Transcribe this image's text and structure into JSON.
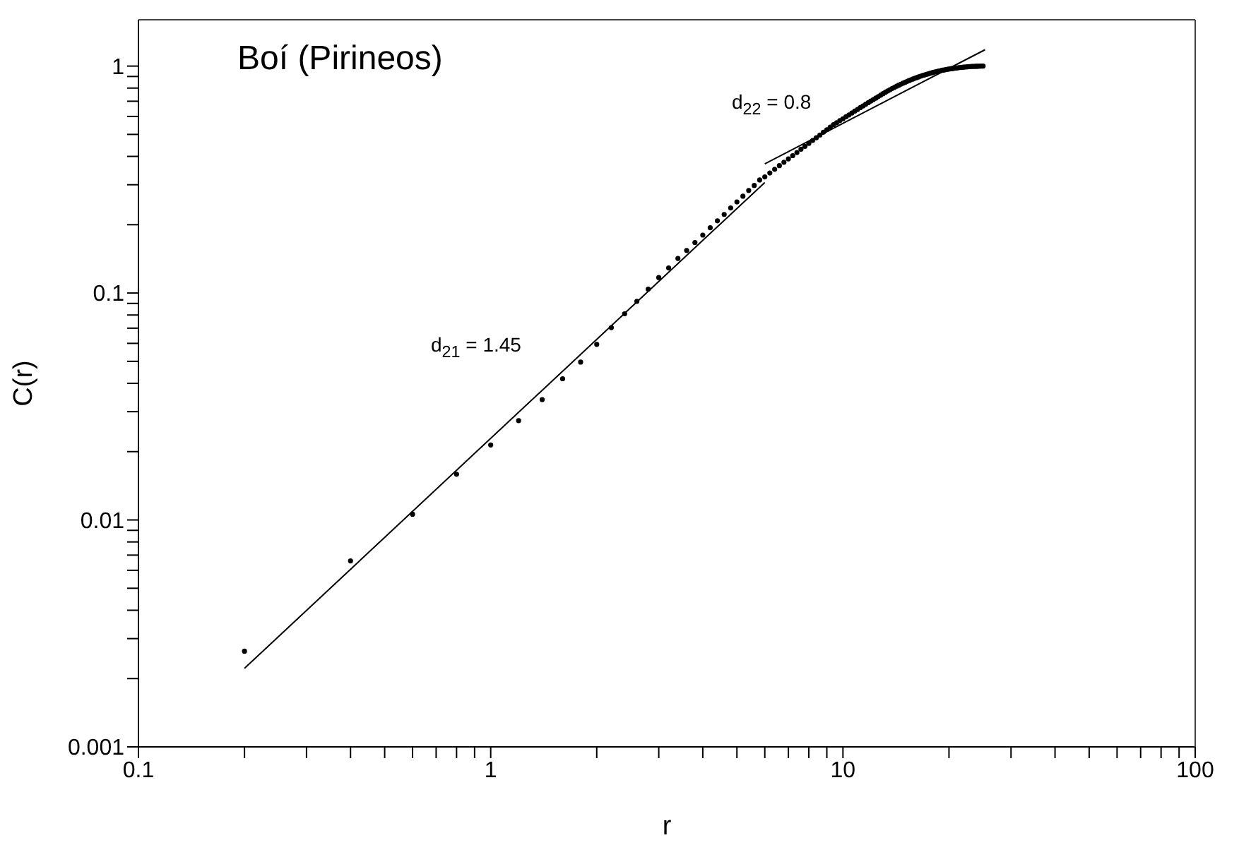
{
  "chart_data": {
    "type": "scatter",
    "title": "Boí (Pirineos)",
    "xlabel": "r",
    "ylabel": "C(r)",
    "log": "xy",
    "grid": false,
    "legend": false,
    "xlim": [
      0.1,
      100
    ],
    "ylim": [
      0.001,
      1.6
    ],
    "xticks": [
      0.1,
      {
        "value": 0.2,
        "label": null
      },
      {
        "value": 0.3,
        "label": null
      },
      {
        "value": 0.4,
        "label": null
      },
      {
        "value": 0.5,
        "label": null
      },
      {
        "value": 0.6,
        "label": null
      },
      {
        "value": 0.7,
        "label": null
      },
      {
        "value": 0.8,
        "label": null
      },
      {
        "value": 0.9,
        "label": null
      },
      1,
      {
        "value": 2,
        "label": null
      },
      {
        "value": 3,
        "label": null
      },
      {
        "value": 4,
        "label": null
      },
      {
        "value": 5,
        "label": null
      },
      {
        "value": 6,
        "label": null
      },
      {
        "value": 7,
        "label": null
      },
      {
        "value": 8,
        "label": null
      },
      {
        "value": 9,
        "label": null
      },
      10,
      {
        "value": 20,
        "label": null
      },
      {
        "value": 30,
        "label": null
      },
      {
        "value": 40,
        "label": null
      },
      {
        "value": 50,
        "label": null
      },
      {
        "value": 60,
        "label": null
      },
      {
        "value": 70,
        "label": null
      },
      {
        "value": 80,
        "label": null
      },
      {
        "value": 90,
        "label": null
      },
      100
    ],
    "yticks": [
      0.001,
      {
        "value": 0.002,
        "label": null
      },
      {
        "value": 0.003,
        "label": null
      },
      {
        "value": 0.004,
        "label": null
      },
      {
        "value": 0.005,
        "label": null
      },
      {
        "value": 0.006,
        "label": null
      },
      {
        "value": 0.007,
        "label": null
      },
      {
        "value": 0.008,
        "label": null
      },
      {
        "value": 0.009,
        "label": null
      },
      0.01,
      {
        "value": 0.02,
        "label": null
      },
      {
        "value": 0.03,
        "label": null
      },
      {
        "value": 0.04,
        "label": null
      },
      {
        "value": 0.05,
        "label": null
      },
      {
        "value": 0.06,
        "label": null
      },
      {
        "value": 0.07,
        "label": null
      },
      {
        "value": 0.08,
        "label": null
      },
      {
        "value": 0.09,
        "label": null
      },
      0.1,
      {
        "value": 0.2,
        "label": null
      },
      {
        "value": 0.3,
        "label": null
      },
      {
        "value": 0.4,
        "label": null
      },
      {
        "value": 0.5,
        "label": null
      },
      {
        "value": 0.6,
        "label": null
      },
      {
        "value": 0.7,
        "label": null
      },
      {
        "value": 0.8,
        "label": null
      },
      {
        "value": 0.9,
        "label": null
      },
      1
    ],
    "annotations": [
      "d$_{21}$ = 1.45",
      "d$_{22}$ = 0.8"
    ],
    "series": [
      {
        "marker": "circle",
        "color": "#000000",
        "x": [
          0.2,
          0.4,
          0.6,
          0.8,
          1.0,
          1.2,
          1.4,
          1.6,
          1.8,
          2.0,
          2.2,
          2.4,
          2.6,
          2.8,
          3.0,
          3.2,
          3.4,
          3.6,
          3.8,
          4.0,
          4.2,
          4.4,
          4.6,
          4.8,
          5.0,
          5.2,
          5.4,
          5.6,
          5.8,
          6.0,
          6.2,
          6.4,
          6.6,
          6.8,
          7.0,
          7.2,
          7.4,
          7.6,
          7.8,
          8.0,
          8.2,
          8.4,
          8.6,
          8.8,
          9.0,
          9.2,
          9.4,
          9.6,
          9.8,
          10.0,
          10.2,
          10.4,
          10.6,
          10.8,
          11.0,
          11.2,
          11.4,
          11.6,
          11.8,
          12.0,
          12.2,
          12.4,
          12.6,
          12.8,
          13.0,
          13.2,
          13.4,
          13.6,
          13.8,
          14.0,
          14.2,
          14.4,
          14.6,
          14.8,
          15.0,
          15.2,
          15.4,
          15.6,
          15.8,
          16.0,
          16.2,
          16.4,
          16.6,
          16.8,
          17.0,
          17.2,
          17.4,
          17.6,
          17.8,
          18.0,
          18.2,
          18.4,
          18.6,
          18.8,
          19.0,
          19.2,
          19.4,
          19.6,
          19.8,
          20.0,
          20.2,
          20.4,
          20.6,
          20.8,
          21.0,
          21.2,
          21.4,
          21.6,
          21.8,
          22.0,
          22.2,
          22.4,
          22.6,
          22.8,
          23.0,
          23.2,
          23.4,
          23.6,
          23.8,
          24.0,
          24.2,
          24.4,
          24.6,
          24.8,
          25.0
        ],
        "values": [
          0.00264,
          0.0066,
          0.0106,
          0.0159,
          0.0214,
          0.0274,
          0.0339,
          0.0419,
          0.0496,
          0.0594,
          0.0704,
          0.081,
          0.0919,
          0.104,
          0.117,
          0.129,
          0.142,
          0.154,
          0.167,
          0.18,
          0.194,
          0.208,
          0.222,
          0.237,
          0.252,
          0.267,
          0.283,
          0.298,
          0.315,
          0.325,
          0.338,
          0.351,
          0.364,
          0.377,
          0.39,
          0.403,
          0.416,
          0.43,
          0.443,
          0.456,
          0.47,
          0.483,
          0.497,
          0.511,
          0.524,
          0.538,
          0.552,
          0.563,
          0.575,
          0.586,
          0.598,
          0.609,
          0.621,
          0.633,
          0.644,
          0.656,
          0.667,
          0.679,
          0.69,
          0.701,
          0.712,
          0.723,
          0.734,
          0.745,
          0.756,
          0.767,
          0.777,
          0.787,
          0.797,
          0.806,
          0.815,
          0.824,
          0.832,
          0.84,
          0.848,
          0.856,
          0.863,
          0.87,
          0.877,
          0.884,
          0.89,
          0.896,
          0.902,
          0.908,
          0.913,
          0.918,
          0.923,
          0.928,
          0.933,
          0.937,
          0.941,
          0.945,
          0.949,
          0.952,
          0.956,
          0.959,
          0.962,
          0.965,
          0.968,
          0.97,
          0.973,
          0.975,
          0.977,
          0.979,
          0.981,
          0.983,
          0.985,
          0.986,
          0.988,
          0.989,
          0.99,
          0.992,
          0.993,
          0.994,
          0.995,
          0.996,
          0.997,
          0.997,
          0.998,
          0.998,
          0.999,
          0.999,
          1.0,
          1.0,
          1.0
        ]
      },
      {
        "type": "line",
        "marker": "none",
        "line_style": "solid",
        "color": "#000000",
        "x": [
          0.2,
          6
        ],
        "values": [
          0.00222,
          0.307
        ]
      },
      {
        "type": "line",
        "marker": "none",
        "line_style": "solid",
        "color": "#000000",
        "x": [
          6,
          25.3
        ],
        "values": [
          0.371,
          1.18
        ]
      }
    ]
  }
}
